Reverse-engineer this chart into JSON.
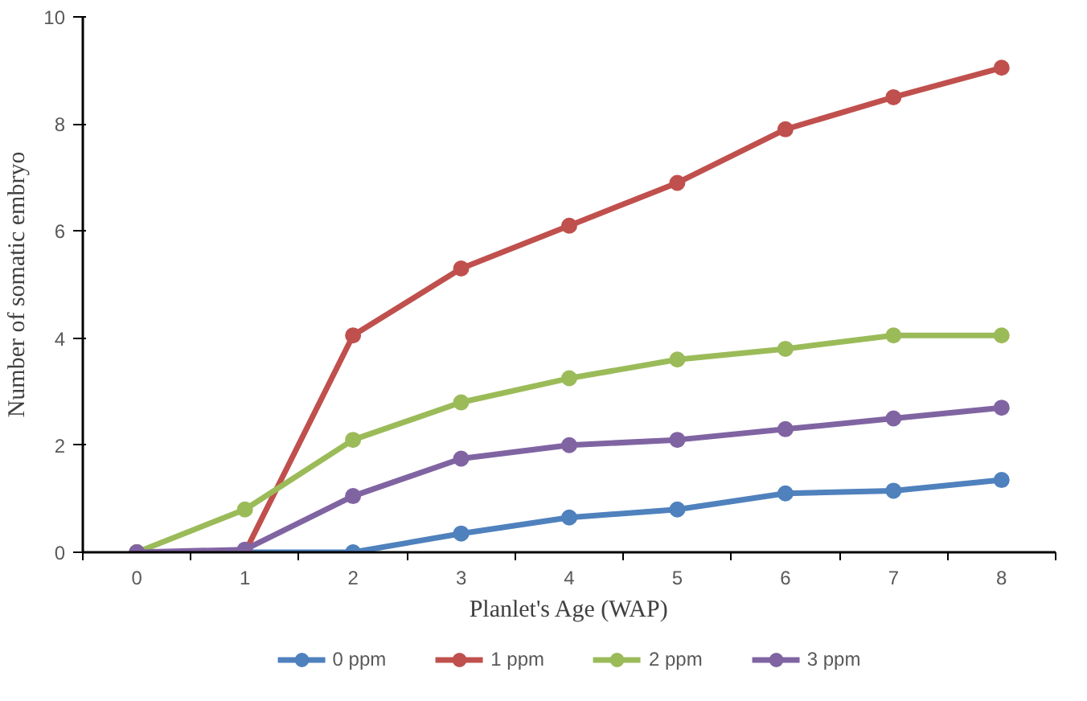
{
  "chart_data": {
    "type": "line",
    "xlabel": "Planlet's Age (WAP)",
    "ylabel": "Number of somatic embryo",
    "categories": [
      "0",
      "1",
      "2",
      "3",
      "4",
      "5",
      "6",
      "7",
      "8"
    ],
    "series": [
      {
        "name": "0 ppm",
        "color": "#4f81bd",
        "values": [
          0,
          0,
          0,
          0.35,
          0.65,
          0.8,
          1.1,
          1.15,
          1.35
        ]
      },
      {
        "name": "1 ppm",
        "color": "#c0504d",
        "values": [
          0,
          0,
          4.05,
          5.3,
          6.1,
          6.9,
          7.9,
          8.5,
          9.05
        ]
      },
      {
        "name": "2 ppm",
        "color": "#9bbb59",
        "values": [
          0,
          0.8,
          2.1,
          2.8,
          3.25,
          3.6,
          3.8,
          4.05,
          4.05
        ]
      },
      {
        "name": "3 ppm",
        "color": "#8064a2",
        "values": [
          0,
          0.05,
          1.05,
          1.75,
          2.0,
          2.1,
          2.3,
          2.5,
          2.7
        ]
      }
    ],
    "ylim": [
      0,
      10
    ],
    "yticks": [
      0,
      2,
      4,
      6,
      8,
      10
    ],
    "grid": false,
    "legend": "bottom",
    "marker": "circle",
    "line_style": "solid"
  }
}
